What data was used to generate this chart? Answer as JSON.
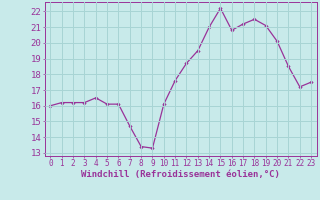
{
  "x": [
    0,
    1,
    2,
    3,
    4,
    5,
    6,
    7,
    8,
    9,
    10,
    11,
    12,
    13,
    14,
    15,
    16,
    17,
    18,
    19,
    20,
    21,
    22,
    23
  ],
  "y": [
    16.0,
    16.2,
    16.2,
    16.2,
    16.5,
    16.1,
    16.1,
    14.7,
    13.4,
    13.3,
    16.1,
    17.6,
    18.7,
    19.5,
    21.0,
    22.2,
    20.8,
    21.2,
    21.5,
    21.1,
    20.1,
    18.5,
    17.2,
    17.5
  ],
  "line_color": "#993399",
  "marker": "D",
  "marker_size": 1.8,
  "bg_color": "#c8eaea",
  "grid_color": "#a8d4d4",
  "xlabel": "Windchill (Refroidissement éolien,°C)",
  "ylabel_ticks": [
    13,
    14,
    15,
    16,
    17,
    18,
    19,
    20,
    21,
    22
  ],
  "xtick_labels": [
    "0",
    "1",
    "2",
    "3",
    "4",
    "5",
    "6",
    "7",
    "8",
    "9",
    "10",
    "11",
    "12",
    "13",
    "14",
    "15",
    "16",
    "17",
    "18",
    "19",
    "20",
    "21",
    "22",
    "23"
  ],
  "ylim": [
    12.8,
    22.6
  ],
  "xlim": [
    -0.5,
    23.5
  ],
  "axis_color": "#993399",
  "tick_color": "#993399",
  "label_color": "#993399",
  "font_size_xlabel": 6.5,
  "font_size_ytick": 6.5,
  "font_size_xtick": 5.5
}
